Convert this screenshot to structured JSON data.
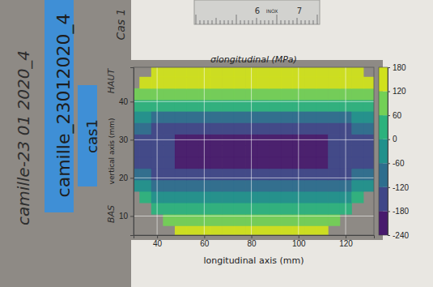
{
  "chart_data": {
    "type": "heatmap",
    "title": "σlongitudinal (MPa)",
    "x_label": "longitudinal axis (mm)",
    "y_label": "vertical axis (mm)",
    "x": [
      30,
      35,
      40,
      45,
      50,
      55,
      60,
      65,
      70,
      75,
      80,
      85,
      90,
      95,
      100,
      105,
      110,
      115,
      120,
      125,
      130
    ],
    "y": [
      6,
      9,
      12,
      15,
      18,
      21,
      24,
      27,
      30,
      33,
      36,
      39,
      42,
      45,
      48
    ],
    "z": [
      [
        null,
        null,
        null,
        null,
        160,
        160,
        160,
        160,
        160,
        160,
        160,
        160,
        160,
        160,
        160,
        160,
        160,
        null,
        null,
        null,
        null
      ],
      [
        null,
        null,
        null,
        110,
        110,
        110,
        110,
        110,
        110,
        110,
        110,
        110,
        110,
        110,
        110,
        110,
        110,
        110,
        null,
        null,
        null
      ],
      [
        null,
        null,
        45,
        45,
        40,
        40,
        40,
        40,
        40,
        40,
        40,
        40,
        40,
        40,
        40,
        40,
        40,
        45,
        45,
        null,
        null
      ],
      [
        null,
        0,
        -10,
        -10,
        -20,
        -20,
        -20,
        -20,
        -20,
        -20,
        -20,
        -20,
        -20,
        -20,
        -20,
        -20,
        -20,
        -10,
        -10,
        0,
        null
      ],
      [
        -50,
        -50,
        -65,
        -65,
        -80,
        -80,
        -80,
        -80,
        -80,
        -80,
        -80,
        -80,
        -80,
        -80,
        -80,
        -80,
        -80,
        -65,
        -65,
        -50,
        -50
      ],
      [
        -100,
        -100,
        -125,
        -125,
        -150,
        -150,
        -150,
        -150,
        -150,
        -150,
        -150,
        -150,
        -150,
        -150,
        -150,
        -150,
        -150,
        -125,
        -125,
        -100,
        -100
      ],
      [
        -130,
        -130,
        -170,
        -170,
        -200,
        -200,
        -200,
        -200,
        -200,
        -200,
        -200,
        -200,
        -200,
        -200,
        -200,
        -200,
        -200,
        -170,
        -170,
        -130,
        -130
      ],
      [
        -140,
        -140,
        -180,
        -180,
        -215,
        -215,
        -215,
        -215,
        -215,
        -215,
        -215,
        -215,
        -215,
        -215,
        -215,
        -215,
        -215,
        -180,
        -180,
        -140,
        -140
      ],
      [
        -135,
        -135,
        -175,
        -175,
        -210,
        -210,
        -195,
        -210,
        -210,
        -210,
        -195,
        -210,
        -210,
        -210,
        -195,
        -210,
        -210,
        -175,
        -175,
        -135,
        -135
      ],
      [
        -110,
        -110,
        -140,
        -140,
        -170,
        -170,
        -170,
        -170,
        -170,
        -170,
        -170,
        -170,
        -170,
        -170,
        -170,
        -170,
        -170,
        -140,
        -140,
        -110,
        -110
      ],
      [
        -60,
        -60,
        -75,
        -75,
        -90,
        -90,
        -90,
        -90,
        -90,
        -90,
        -90,
        -90,
        -90,
        -90,
        -90,
        -90,
        -90,
        -75,
        -75,
        -60,
        -60
      ],
      [
        10,
        10,
        10,
        10,
        10,
        10,
        10,
        10,
        10,
        10,
        10,
        10,
        10,
        10,
        10,
        10,
        10,
        10,
        10,
        10,
        10
      ],
      [
        70,
        70,
        70,
        70,
        70,
        70,
        70,
        70,
        70,
        70,
        70,
        70,
        70,
        70,
        70,
        70,
        70,
        70,
        70,
        70,
        70
      ],
      [
        null,
        120,
        120,
        120,
        120,
        120,
        120,
        120,
        120,
        120,
        120,
        120,
        120,
        120,
        120,
        120,
        120,
        120,
        120,
        120,
        120
      ],
      [
        null,
        null,
        150,
        150,
        150,
        150,
        150,
        150,
        150,
        150,
        150,
        150,
        150,
        150,
        150,
        150,
        150,
        150,
        150,
        150,
        null
      ]
    ],
    "xlim": [
      30,
      132
    ],
    "ylim": [
      5,
      49
    ],
    "xticks": [
      40,
      60,
      80,
      100,
      120
    ],
    "yticks": [
      10,
      20,
      30,
      40
    ],
    "grid": true,
    "colorbar": {
      "range": [
        -240,
        180
      ],
      "ticks": [
        -240,
        -180,
        -120,
        -60,
        0,
        60,
        120,
        180
      ]
    },
    "annotations": [
      "camille-23 01 2020_4",
      "camille_23012020_4",
      "cas1",
      "Cas 1",
      "HAUT",
      "BAS",
      "6",
      "INOX",
      "7"
    ]
  }
}
